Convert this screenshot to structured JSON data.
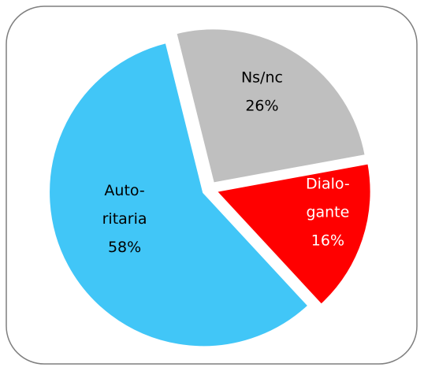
{
  "chart_data": {
    "type": "pie",
    "categories": [
      [
        "Ns/nc"
      ],
      [
        "Dialo-",
        "gante"
      ],
      [
        "Auto-",
        "ritaria"
      ]
    ],
    "values": [
      26,
      16,
      58
    ],
    "value_labels": [
      "26%",
      "16%",
      "58%"
    ],
    "colors": [
      "#bfbfbf",
      "#ff0000",
      "#41c6f7"
    ],
    "label_colors": [
      "#000000",
      "#ffffff",
      "#000000"
    ]
  }
}
